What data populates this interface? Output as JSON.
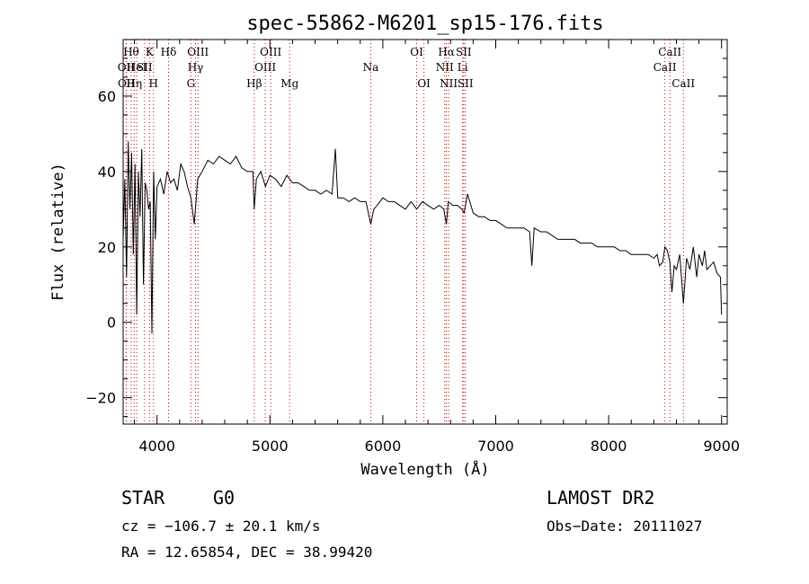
{
  "chart_data": {
    "type": "line",
    "title": "spec-55862-M6201_sp15-176.fits",
    "xlabel": "Wavelength (Å)",
    "ylabel": "Flux (relative)",
    "xlim": [
      3700,
      9050
    ],
    "ylim": [
      -27,
      75
    ],
    "x_ticks": [
      4000,
      5000,
      6000,
      7000,
      8000,
      9000
    ],
    "y_ticks": [
      -20,
      0,
      20,
      40,
      60
    ],
    "grid": false,
    "legend": "none",
    "line_color": "#000000",
    "marker_color": "#cc0000",
    "spectrum": {
      "x": [
        3700,
        3715,
        3730,
        3745,
        3760,
        3775,
        3790,
        3805,
        3820,
        3835,
        3850,
        3865,
        3880,
        3895,
        3910,
        3925,
        3940,
        3955,
        3970,
        3985,
        4000,
        4030,
        4060,
        4090,
        4120,
        4150,
        4180,
        4210,
        4240,
        4270,
        4300,
        4330,
        4360,
        4400,
        4450,
        4500,
        4550,
        4600,
        4650,
        4700,
        4750,
        4800,
        4850,
        4861,
        4880,
        4920,
        4960,
        5000,
        5050,
        5100,
        5150,
        5200,
        5250,
        5300,
        5350,
        5400,
        5450,
        5500,
        5550,
        5580,
        5600,
        5650,
        5700,
        5750,
        5800,
        5850,
        5893,
        5920,
        5950,
        6000,
        6050,
        6100,
        6150,
        6200,
        6250,
        6300,
        6350,
        6400,
        6450,
        6500,
        6540,
        6563,
        6580,
        6620,
        6660,
        6700,
        6720,
        6750,
        6800,
        6850,
        6900,
        6950,
        7000,
        7050,
        7100,
        7150,
        7200,
        7250,
        7300,
        7320,
        7340,
        7400,
        7450,
        7500,
        7550,
        7600,
        7650,
        7700,
        7750,
        7800,
        7850,
        7900,
        7950,
        8000,
        8050,
        8100,
        8150,
        8200,
        8250,
        8300,
        8350,
        8400,
        8430,
        8450,
        8480,
        8498,
        8520,
        8542,
        8560,
        8580,
        8600,
        8630,
        8662,
        8690,
        8720,
        8750,
        8780,
        8800,
        8830,
        8850,
        8870,
        8900,
        8930,
        8960,
        8990,
        9000
      ],
      "y": [
        22,
        38,
        12,
        48,
        30,
        45,
        18,
        42,
        2,
        40,
        28,
        46,
        10,
        37,
        35,
        30,
        32,
        -3,
        40,
        22,
        36,
        38,
        34,
        40,
        37,
        38,
        35,
        42,
        40,
        36,
        33,
        26,
        38,
        40,
        43,
        42,
        44,
        43,
        42,
        44,
        41,
        40,
        40,
        30,
        38,
        40,
        36,
        39,
        38,
        36,
        39,
        37,
        37,
        36,
        35,
        35,
        34,
        35,
        34,
        46,
        33,
        33,
        32,
        33,
        32,
        32,
        26,
        30,
        31,
        33,
        32,
        32,
        31,
        30,
        32,
        30,
        32,
        31,
        30,
        31,
        30,
        26,
        32,
        31,
        31,
        30,
        29,
        34,
        29,
        28,
        28,
        27,
        27,
        26,
        25,
        25,
        25,
        25,
        24,
        15,
        25,
        24,
        24,
        23,
        22,
        22,
        22,
        22,
        21,
        21,
        21,
        20,
        20,
        20,
        20,
        19,
        19,
        18,
        18,
        18,
        18,
        17,
        18,
        15,
        16,
        20,
        19,
        16,
        8,
        15,
        14,
        18,
        5,
        17,
        14,
        20,
        12,
        18,
        15,
        19,
        14,
        15,
        16,
        13,
        12,
        2
      ]
    },
    "line_markers": [
      {
        "wavelength": 3727,
        "label": "OII",
        "row": 2
      },
      {
        "wavelength": 3729,
        "label": "OII",
        "row": 3
      },
      {
        "wavelength": 3771,
        "label": "Hθ",
        "row": 1
      },
      {
        "wavelength": 3798,
        "label": "Hη",
        "row": 3
      },
      {
        "wavelength": 3820,
        "label": "HeI",
        "row": 2
      },
      {
        "wavelength": 3889,
        "label": "SII",
        "row": 2
      },
      {
        "wavelength": 3934,
        "label": "K",
        "row": 1
      },
      {
        "wavelength": 3969,
        "label": "H",
        "row": 3
      },
      {
        "wavelength": 4102,
        "label": "Hδ",
        "row": 1
      },
      {
        "wavelength": 4300,
        "label": "G",
        "row": 3
      },
      {
        "wavelength": 4341,
        "label": "Hγ",
        "row": 2
      },
      {
        "wavelength": 4363,
        "label": "OIII",
        "row": 1
      },
      {
        "wavelength": 4861,
        "label": "Hβ",
        "row": 3
      },
      {
        "wavelength": 4959,
        "label": "OIII",
        "row": 2
      },
      {
        "wavelength": 5007,
        "label": "OIII",
        "row": 1
      },
      {
        "wavelength": 5175,
        "label": "Mg",
        "row": 3
      },
      {
        "wavelength": 5893,
        "label": "Na",
        "row": 2
      },
      {
        "wavelength": 6300,
        "label": "OI",
        "row": 1
      },
      {
        "wavelength": 6364,
        "label": "OI",
        "row": 3
      },
      {
        "wavelength": 6548,
        "label": "NII",
        "row": 2
      },
      {
        "wavelength": 6563,
        "label": "Hα",
        "row": 1
      },
      {
        "wavelength": 6583,
        "label": "NII",
        "row": 3
      },
      {
        "wavelength": 6707,
        "label": "Li",
        "row": 2
      },
      {
        "wavelength": 6716,
        "label": "SII",
        "row": 1
      },
      {
        "wavelength": 6731,
        "label": "SII",
        "row": 3
      },
      {
        "wavelength": 8498,
        "label": "CaII",
        "row": 2
      },
      {
        "wavelength": 8542,
        "label": "CaII",
        "row": 1
      },
      {
        "wavelength": 8662,
        "label": "CaII",
        "row": 3
      }
    ]
  },
  "info": {
    "object_class": "STAR",
    "subclass": "G0",
    "survey": "LAMOST DR2",
    "cz": "cz = −106.7 ± 20.1 km/s",
    "obs_date": "Obs−Date: 20111027",
    "radec": "RA =  12.65854, DEC =  38.99420"
  }
}
